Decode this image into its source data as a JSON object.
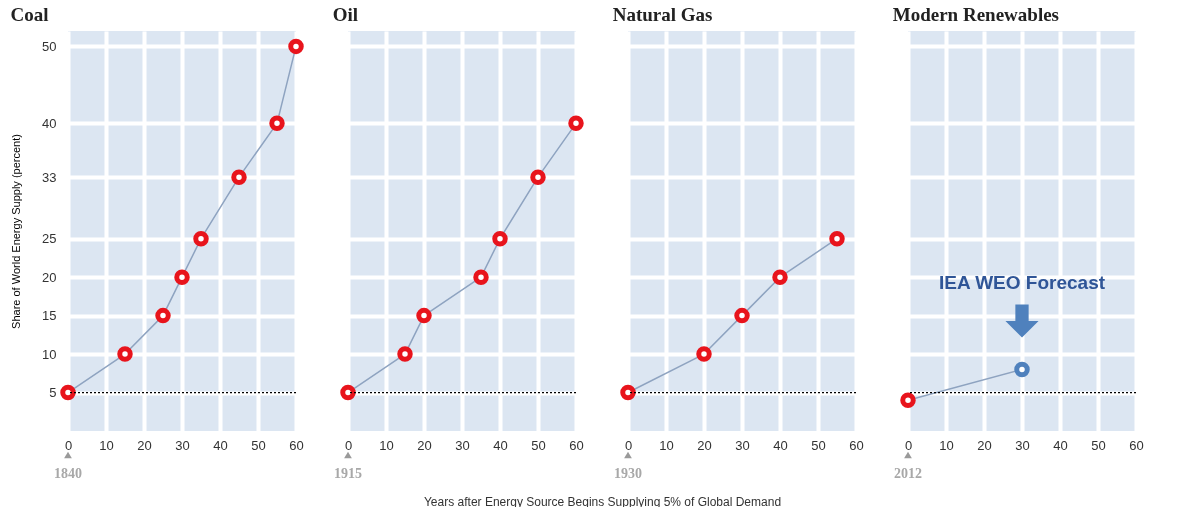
{
  "chart_data": [
    {
      "type": "line",
      "title": "Coal",
      "ylabel": "Share of World Energy Supply (percent)",
      "xlim": [
        0,
        60
      ],
      "xticks": [
        0,
        10,
        20,
        30,
        40,
        50,
        60
      ],
      "ylim": [
        0,
        52
      ],
      "yticks": [
        5,
        10,
        15,
        20,
        25,
        33,
        40,
        50
      ],
      "grid": true,
      "marker": "circle",
      "series": [
        {
          "color": "#8ea3c0",
          "colors": [
            "#e8141c",
            "#e8141c",
            "#e8141c",
            "#e8141c",
            "#e8141c",
            "#e8141c",
            "#e8141c",
            "#e8141c"
          ],
          "x": [
            0,
            15,
            25,
            30,
            35,
            45,
            55,
            60
          ],
          "values": [
            5,
            10,
            15,
            20,
            25,
            33,
            40,
            50
          ]
        }
      ],
      "ref_lines": [
        {
          "axis": "y",
          "value": 5,
          "line_style": "dotted",
          "color": "#000000"
        }
      ],
      "annotations": [
        "1840"
      ]
    },
    {
      "type": "line",
      "title": "Oil",
      "xlabel": "Years after Energy Source Begins Supplying 5% of Global Demand",
      "xlim": [
        0,
        60
      ],
      "xticks": [
        0,
        10,
        20,
        30,
        40,
        50,
        60
      ],
      "ylim": [
        0,
        52
      ],
      "yticks": [
        5,
        10,
        15,
        20,
        25,
        33,
        40,
        50
      ],
      "grid": true,
      "marker": "circle",
      "tick_labels": "x",
      "series": [
        {
          "color": "#8ea3c0",
          "colors": [
            "#e8141c",
            "#e8141c",
            "#e8141c",
            "#e8141c",
            "#e8141c",
            "#e8141c",
            "#e8141c"
          ],
          "x": [
            0,
            15,
            20,
            35,
            40,
            50,
            60
          ],
          "values": [
            5,
            10,
            15,
            20,
            25,
            33,
            40
          ]
        }
      ],
      "ref_lines": [
        {
          "axis": "y",
          "value": 5,
          "line_style": "dotted",
          "color": "#000000"
        }
      ],
      "annotations": [
        "1915"
      ]
    },
    {
      "type": "line",
      "title": "Natural Gas",
      "xlim": [
        0,
        60
      ],
      "xticks": [
        0,
        10,
        20,
        30,
        40,
        50,
        60
      ],
      "ylim": [
        0,
        52
      ],
      "yticks": [
        5,
        10,
        15,
        20,
        25,
        33,
        40,
        50
      ],
      "grid": true,
      "marker": "circle",
      "tick_labels": "x",
      "series": [
        {
          "color": "#8ea3c0",
          "colors": [
            "#e8141c",
            "#e8141c",
            "#e8141c",
            "#e8141c",
            "#e8141c"
          ],
          "x": [
            0,
            20,
            30,
            40,
            55
          ],
          "values": [
            5,
            10,
            15,
            20,
            25
          ]
        }
      ],
      "ref_lines": [
        {
          "axis": "y",
          "value": 5,
          "line_style": "dotted",
          "color": "#000000"
        }
      ],
      "annotations": [
        "1930"
      ]
    },
    {
      "type": "line",
      "title": "Modern Renewables",
      "xlim": [
        0,
        60
      ],
      "xticks": [
        0,
        10,
        20,
        30,
        40,
        50,
        60
      ],
      "ylim": [
        0,
        52
      ],
      "yticks": [
        5,
        10,
        15,
        20,
        25,
        33,
        40,
        50
      ],
      "grid": true,
      "marker": "circle",
      "tick_labels": "x",
      "series": [
        {
          "color": "#8ea3c0",
          "colors": [
            "#e8141c",
            "#4f81bd"
          ],
          "x": [
            0,
            30
          ],
          "values": [
            4,
            8
          ]
        }
      ],
      "ref_lines": [
        {
          "axis": "y",
          "value": 5,
          "line_style": "dotted",
          "color": "#000000"
        }
      ],
      "annotations": [
        "2012",
        "IEA WEO Forecast"
      ]
    }
  ]
}
